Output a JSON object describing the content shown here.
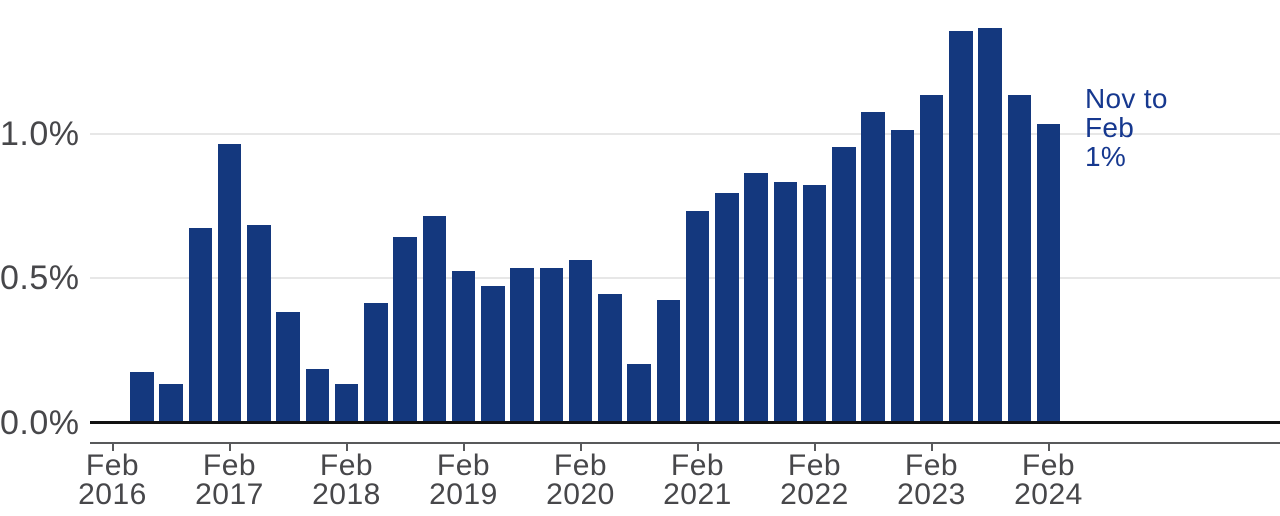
{
  "chart_data": {
    "type": "bar",
    "title": "",
    "xlabel": "",
    "ylabel": "",
    "unit": "%",
    "categories": [
      "May 2016",
      "Aug 2016",
      "Nov 2016",
      "Feb 2017",
      "May 2017",
      "Aug 2017",
      "Nov 2017",
      "Feb 2018",
      "May 2018",
      "Aug 2018",
      "Nov 2018",
      "Feb 2019",
      "May 2019",
      "Aug 2019",
      "Nov 2019",
      "Feb 2020",
      "May 2020",
      "Aug 2020",
      "Nov 2020",
      "Feb 2021",
      "May 2021",
      "Aug 2021",
      "Nov 2021",
      "Feb 2022",
      "May 2022",
      "Aug 2022",
      "Nov 2022",
      "Feb 2023",
      "May 2023",
      "Aug 2023",
      "Nov 2023",
      "Feb 2024"
    ],
    "values": [
      0.17,
      0.13,
      0.67,
      0.96,
      0.68,
      0.38,
      0.18,
      0.13,
      0.41,
      0.64,
      0.71,
      0.52,
      0.47,
      0.53,
      0.53,
      0.56,
      0.44,
      0.2,
      0.42,
      0.73,
      0.79,
      0.86,
      0.83,
      0.82,
      0.95,
      1.07,
      1.01,
      1.13,
      1.35,
      1.36,
      1.13,
      1.03
    ],
    "y_ticks": [
      {
        "value": 0.0,
        "label": "0.0%"
      },
      {
        "value": 0.5,
        "label": "0.5%"
      },
      {
        "value": 1.0,
        "label": "1.0%"
      }
    ],
    "x_ticks": [
      {
        "line1": "Feb",
        "line2": "2016"
      },
      {
        "line1": "Feb",
        "line2": "2017"
      },
      {
        "line1": "Feb",
        "line2": "2018"
      },
      {
        "line1": "Feb",
        "line2": "2019"
      },
      {
        "line1": "Feb",
        "line2": "2020"
      },
      {
        "line1": "Feb",
        "line2": "2021"
      },
      {
        "line1": "Feb",
        "line2": "2022"
      },
      {
        "line1": "Feb",
        "line2": "2023"
      },
      {
        "line1": "Feb",
        "line2": "2024"
      }
    ],
    "ylim": [
      0,
      1.4
    ],
    "grid": "horizontal",
    "legend": "none",
    "annotation": {
      "lines": [
        "Nov to",
        "Feb",
        "1%"
      ]
    },
    "colors": {
      "bar": "#14387E",
      "annotation_text": "#16388F",
      "grid_line": "#E7E7E7",
      "zero_line": "#111111",
      "axis_line": "#58595B",
      "tick_label": "#47474A"
    }
  }
}
